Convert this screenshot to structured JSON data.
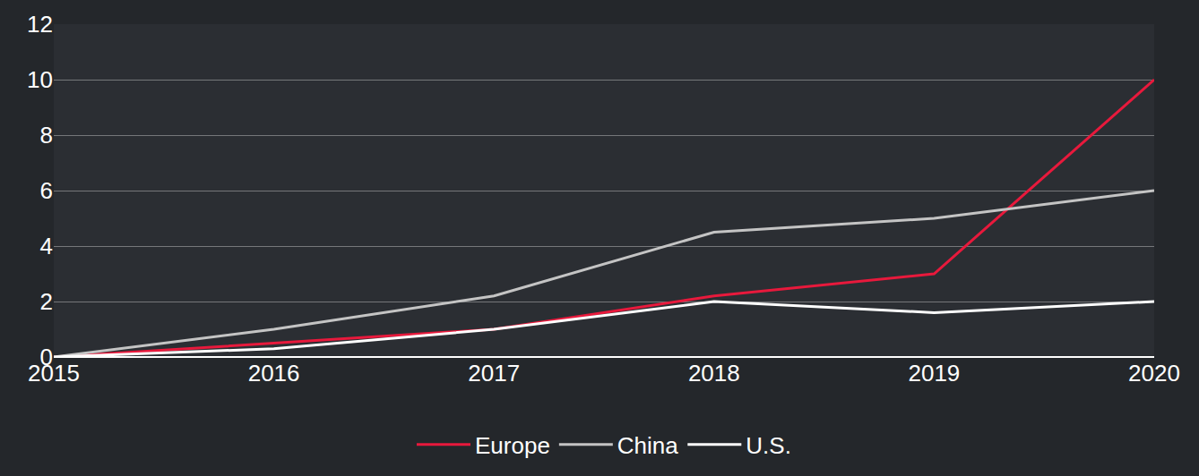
{
  "chart_data": {
    "type": "line",
    "categories": [
      "2015",
      "2016",
      "2017",
      "2018",
      "2019",
      "2020"
    ],
    "series": [
      {
        "name": "Europe",
        "color": "#e8193c",
        "values": [
          0,
          0.5,
          1.0,
          2.2,
          3.0,
          10.0
        ]
      },
      {
        "name": "China",
        "color": "#c4c4c4",
        "values": [
          0,
          1.0,
          2.2,
          4.5,
          5.0,
          6.0
        ]
      },
      {
        "name": "U.S.",
        "color": "#ffffff",
        "values": [
          0,
          0.3,
          1.0,
          2.0,
          1.6,
          2.0
        ]
      }
    ],
    "ylim": [
      0,
      12
    ],
    "yticks": [
      0,
      2,
      4,
      6,
      8,
      10,
      12
    ],
    "grid": true,
    "legend": "bottom"
  }
}
